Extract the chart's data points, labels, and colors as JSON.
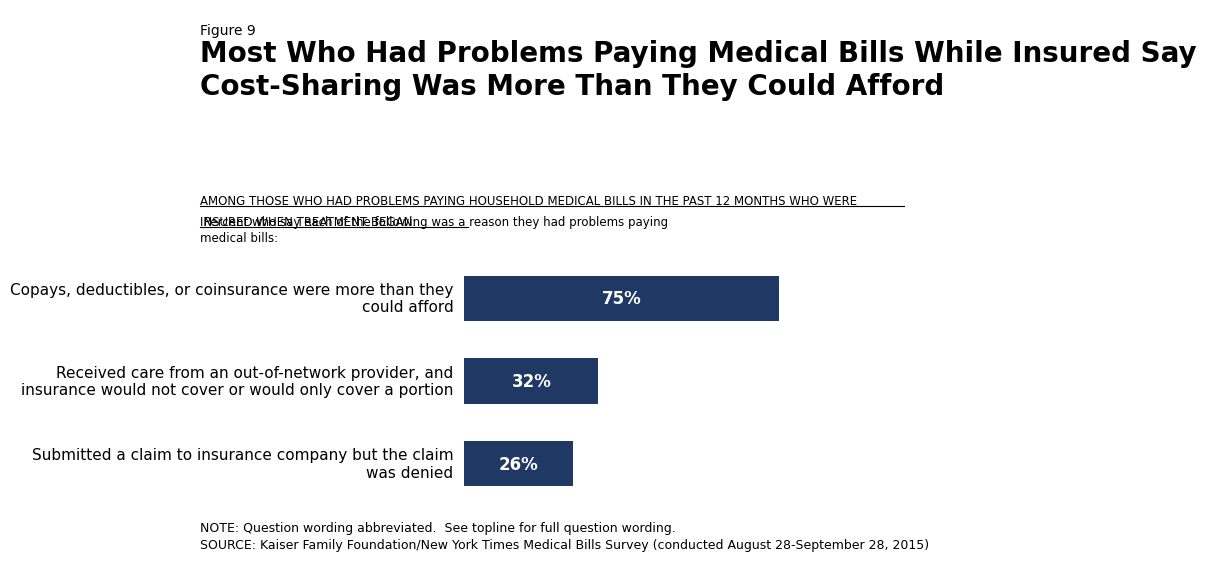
{
  "figure_label": "Figure 9",
  "title": "Most Who Had Problems Paying Medical Bills While Insured Say\nCost-Sharing Was More Than They Could Afford",
  "subtitle_underlined_line1": "AMONG THOSE WHO HAD PROBLEMS PAYING HOUSEHOLD MEDICAL BILLS IN THE PAST 12 MONTHS WHO WERE",
  "subtitle_underlined_line2": "INSURED WHEN TREATMENT BEGAN:",
  "subtitle_normal": " Percent who say each of the following was a reason they had problems paying\nmedical bills:",
  "categories": [
    "Copays, deductibles, or coinsurance were more than they\ncould afford",
    "Received care from an out-of-network provider, and\ninsurance would not cover or would only cover a portion",
    "Submitted a claim to insurance company but the claim\nwas denied"
  ],
  "values": [
    75,
    32,
    26
  ],
  "bar_color": "#1f3864",
  "bar_label_color": "#ffffff",
  "bar_label_fontsize": 12,
  "note": "NOTE: Question wording abbreviated.  See topline for full question wording.\nSOURCE: Kaiser Family Foundation/New York Times Medical Bills Survey (conducted August 28-September 28, 2015)",
  "background_color": "#ffffff",
  "text_color": "#000000",
  "title_fontsize": 20,
  "figure_label_fontsize": 10,
  "category_fontsize": 11,
  "note_fontsize": 9,
  "xlim": [
    0,
    100
  ],
  "bar_height": 0.55,
  "logo_color": "#1f3864"
}
